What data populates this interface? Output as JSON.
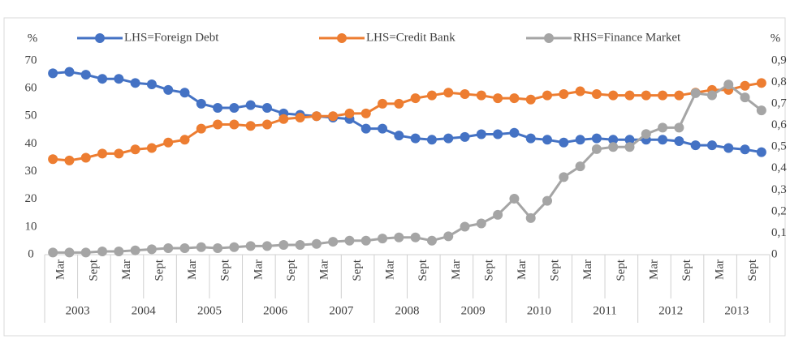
{
  "chart_data": {
    "type": "line",
    "y_label": "%",
    "y2_label": "%",
    "categories": [
      "Mar",
      null,
      "Sept",
      null,
      "Mar",
      null,
      "Sept",
      null,
      "Mar",
      null,
      "Sept",
      null,
      "Mar",
      null,
      "Sept",
      null,
      "Mar",
      null,
      "Sept",
      null,
      "Mar",
      null,
      "Sept",
      null,
      "Mar",
      null,
      "Sept",
      null,
      "Mar",
      null,
      "Sept",
      null,
      "Mar",
      null,
      "Sept",
      null,
      "Mar",
      null,
      "Sept",
      null,
      "Mar",
      null,
      "Sept",
      null
    ],
    "groups": [
      "2003",
      "2004",
      "2005",
      "2006",
      "2007",
      "2008",
      "2009",
      "2010",
      "2011",
      "2012",
      "2013"
    ],
    "ylim": [
      0,
      70
    ],
    "yticks": [
      0,
      10,
      20,
      30,
      40,
      50,
      60,
      70
    ],
    "y2lim": [
      0,
      0.9
    ],
    "y2ticks": [
      0,
      {
        "value": 0.1,
        "label": "0,1"
      },
      {
        "value": 0.2,
        "label": "0,2"
      },
      {
        "value": 0.3,
        "label": "0,3"
      },
      {
        "value": 0.4,
        "label": "0,4"
      },
      {
        "value": 0.5,
        "label": "0,5"
      },
      {
        "value": 0.6,
        "label": "0,6"
      },
      {
        "value": 0.7,
        "label": "0,7"
      },
      {
        "value": 0.8,
        "label": "0,8"
      },
      {
        "value": 0.9,
        "label": "0,9"
      }
    ],
    "grid": false,
    "legend": "top",
    "series": [
      {
        "name": "LHS=Foreign Debt",
        "color": "#4472c4",
        "values": [
          65.5,
          66,
          65,
          63.5,
          63.5,
          62,
          61.5,
          59.5,
          58.5,
          54.5,
          53,
          53,
          54,
          53,
          51,
          50.5,
          50,
          49.5,
          49,
          45.5,
          45.5,
          43,
          42,
          41.5,
          42,
          42.5,
          43.5,
          43.5,
          44,
          42,
          41.5,
          40.5,
          41.5,
          42,
          41.5,
          41.5,
          41.5,
          41.5,
          41,
          39.5,
          39.5,
          38.5,
          38,
          37
        ]
      },
      {
        "name": "LHS=Credit Bank",
        "color": "#ed7d31",
        "values": [
          34.5,
          34,
          35,
          36.5,
          36.5,
          38,
          38.5,
          40.5,
          41.5,
          45.5,
          47,
          47,
          46.5,
          47,
          49,
          49.5,
          50,
          50,
          51,
          51,
          54.5,
          54.5,
          56.5,
          57.5,
          58.5,
          58,
          57.5,
          56.5,
          56.5,
          56,
          57.5,
          58,
          59,
          58,
          57.5,
          57.5,
          57.5,
          57.5,
          57.5,
          58.5,
          59.5,
          59.5,
          61,
          62
        ]
      },
      {
        "name": "RHS=Finance Market",
        "color": "#a5a5a5",
        "axis": "y2",
        "values": [
          0.01,
          0.01,
          0.01,
          0.015,
          0.015,
          0.02,
          0.025,
          0.03,
          0.03,
          0.035,
          0.03,
          0.035,
          0.04,
          0.04,
          0.045,
          0.045,
          0.05,
          0.06,
          0.065,
          0.065,
          0.075,
          0.08,
          0.08,
          0.065,
          0.085,
          0.13,
          0.145,
          0.185,
          0.26,
          0.17,
          0.25,
          0.36,
          0.41,
          0.49,
          0.5,
          0.5,
          0.56,
          0.59,
          0.59,
          0.75,
          0.74,
          0.79,
          0.73,
          0.67
        ]
      }
    ]
  }
}
